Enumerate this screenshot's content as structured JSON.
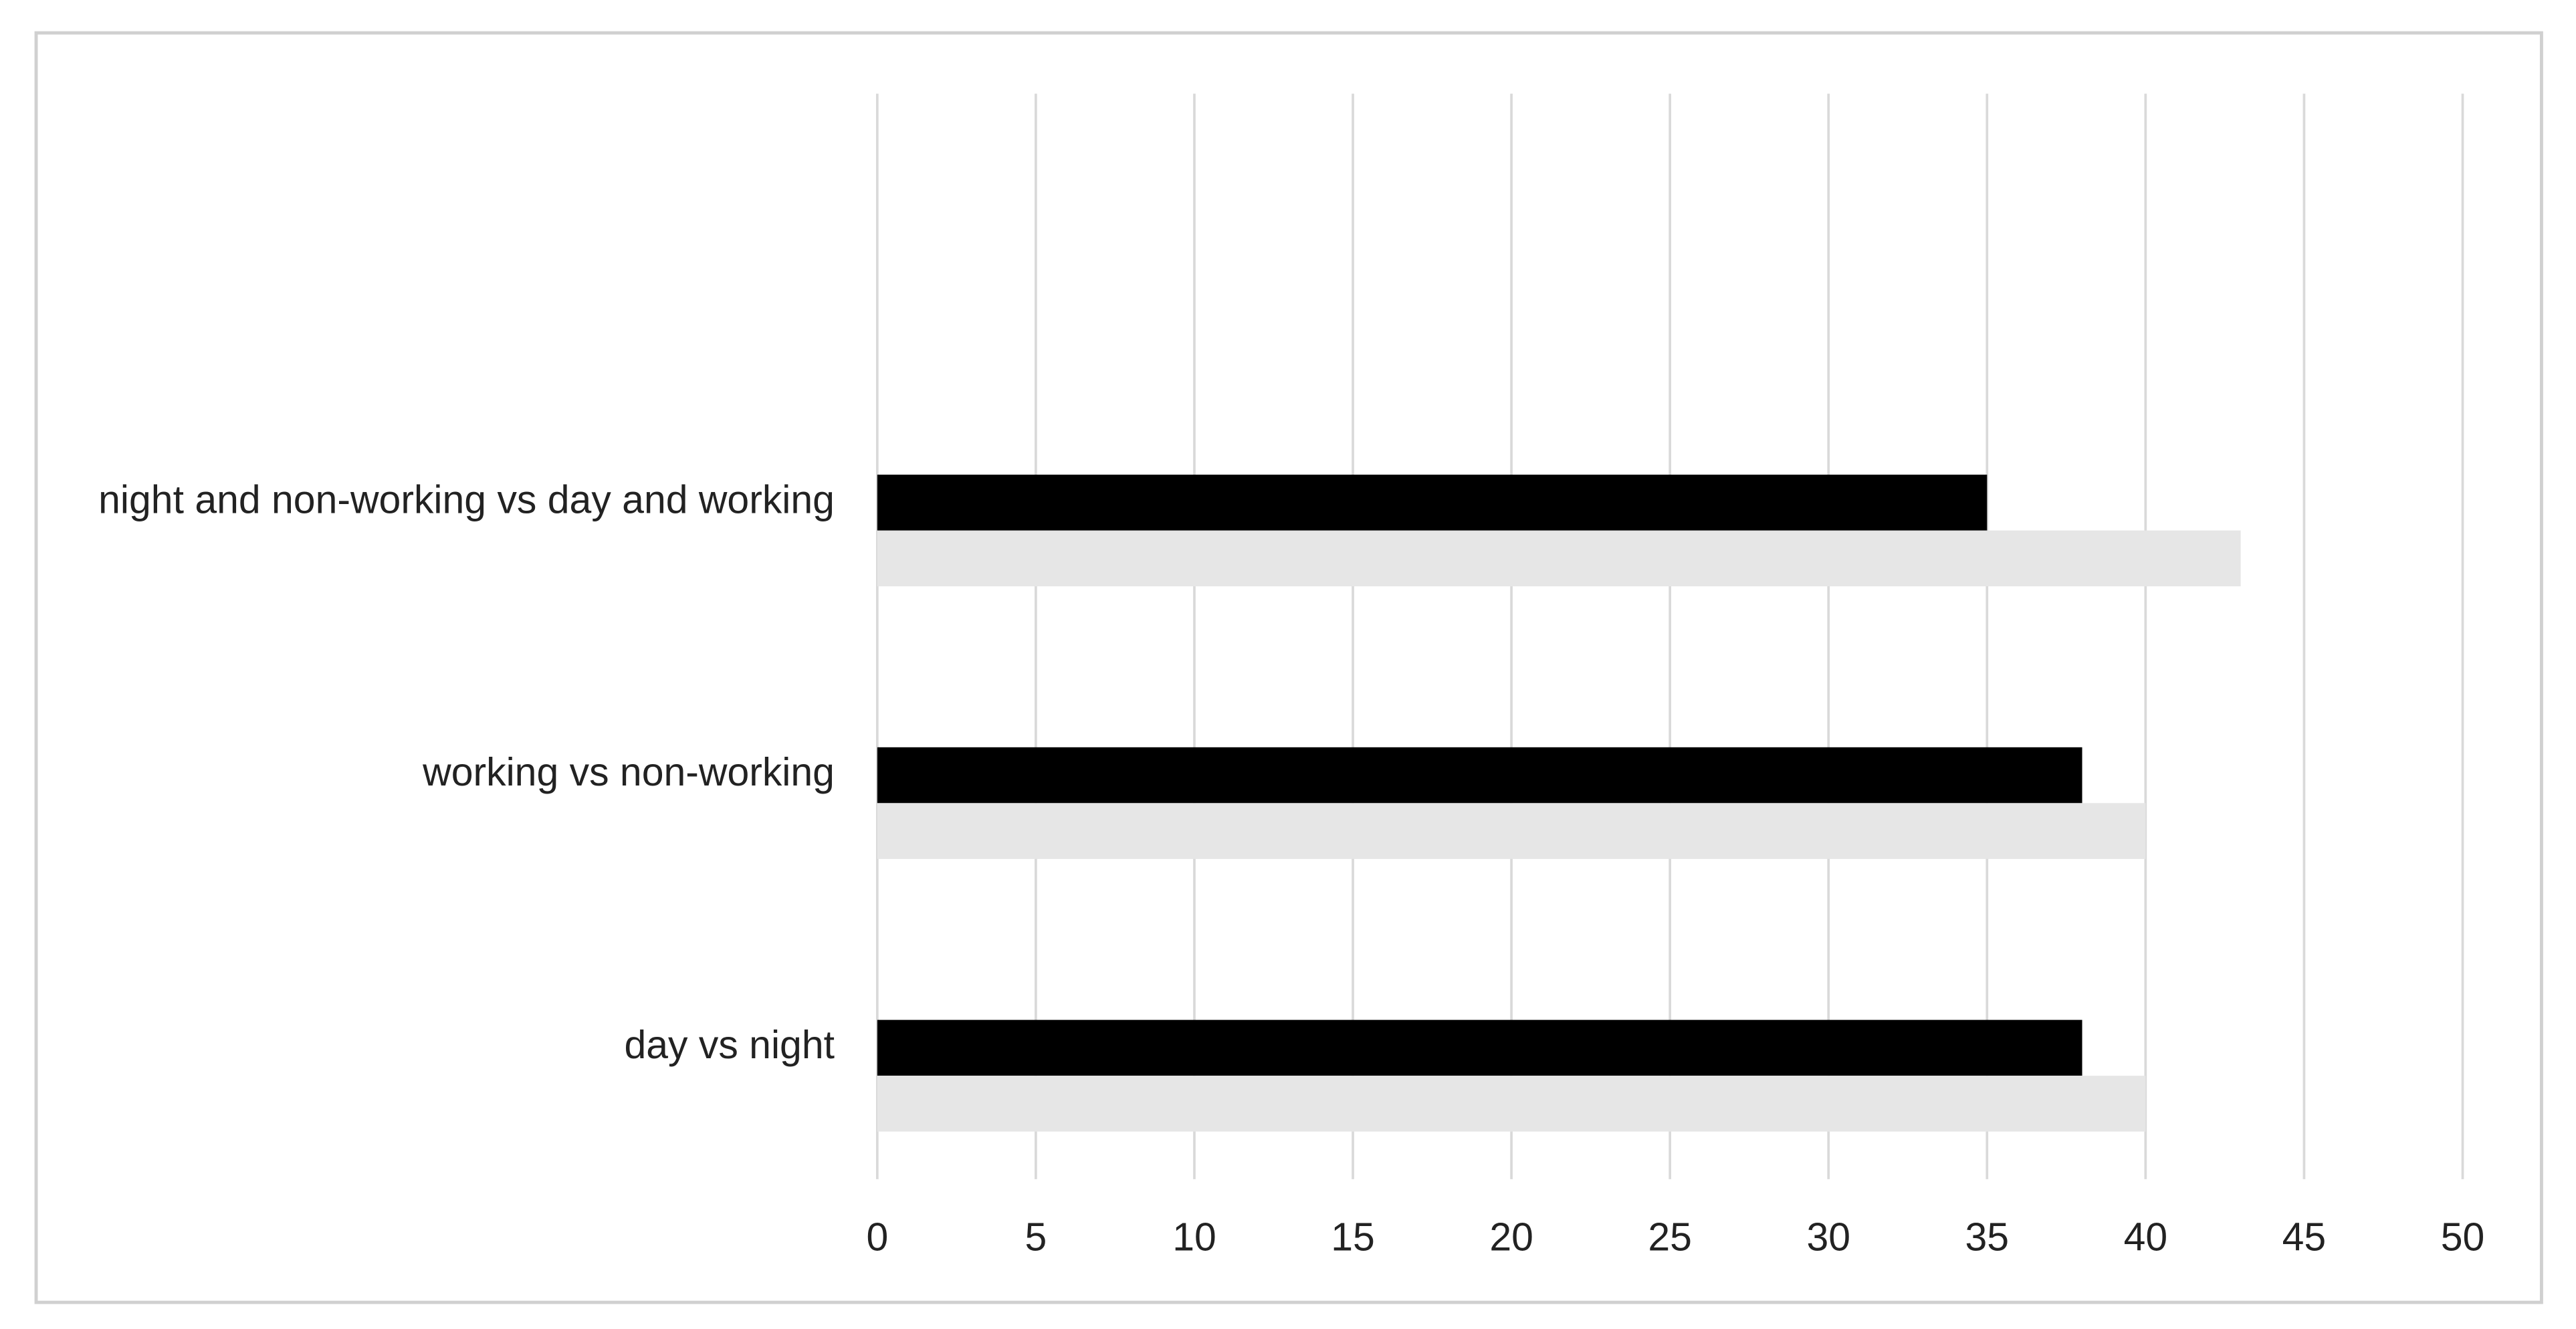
{
  "chart_data": {
    "type": "bar",
    "orientation": "horizontal",
    "categories": [
      "night and non-working vs day and working",
      "working vs non-working",
      "day vs night"
    ],
    "series": [
      {
        "color": "#000000",
        "values": [
          35,
          38,
          38
        ]
      },
      {
        "color": "#e6e6e6",
        "values": [
          43,
          40,
          40
        ]
      }
    ],
    "xlim": [
      0,
      50
    ],
    "xticks": [
      0,
      5,
      10,
      15,
      20,
      25,
      30,
      35,
      40,
      45,
      50
    ],
    "grid": true
  }
}
